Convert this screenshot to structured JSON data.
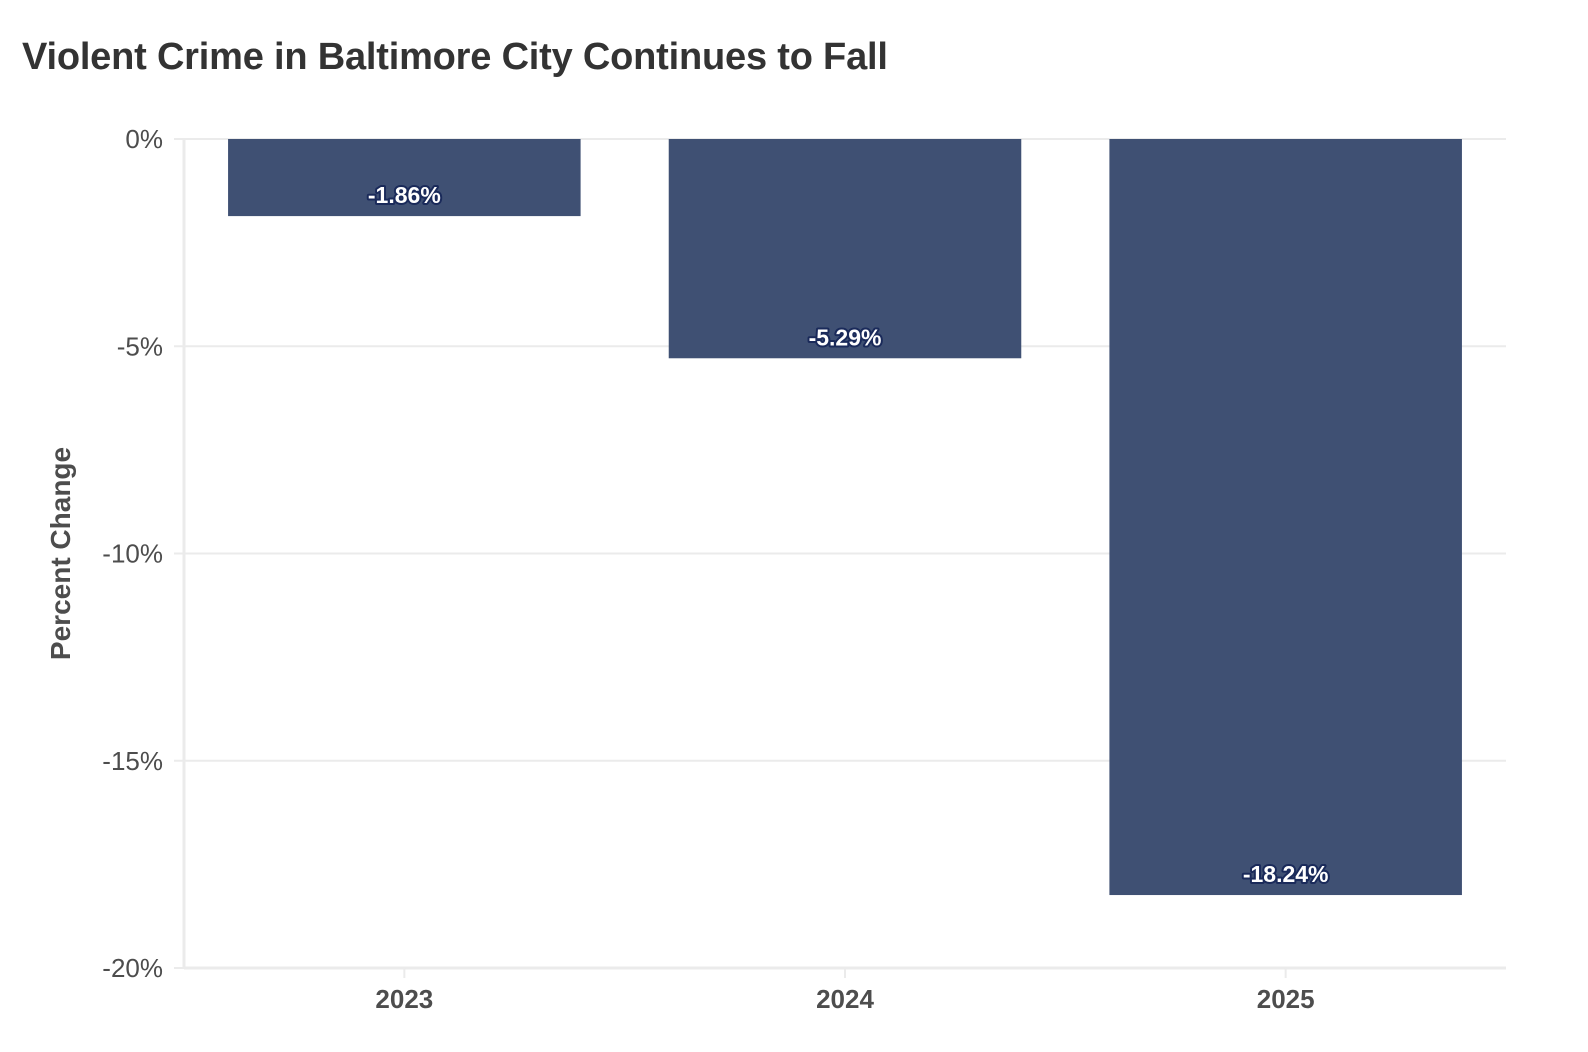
{
  "chart_data": {
    "type": "bar",
    "title": "Violent Crime in Baltimore City Continues to Fall",
    "xlabel": "",
    "ylabel": "Percent Change",
    "categories": [
      "2023",
      "2024",
      "2025"
    ],
    "values": [
      -1.86,
      -5.29,
      -18.24
    ],
    "value_labels": [
      "-1.86%",
      "-5.29%",
      "-18.24%"
    ],
    "ylim": [
      -20,
      0
    ],
    "y_ticks": [
      0,
      -5,
      -10,
      -15,
      -20
    ],
    "y_tick_labels": [
      "0%",
      "-5%",
      "-10%",
      "-15%",
      "-20%"
    ],
    "grid": true,
    "bar_color": "#3f5073",
    "label_outline_color": "#1a2a5a"
  }
}
